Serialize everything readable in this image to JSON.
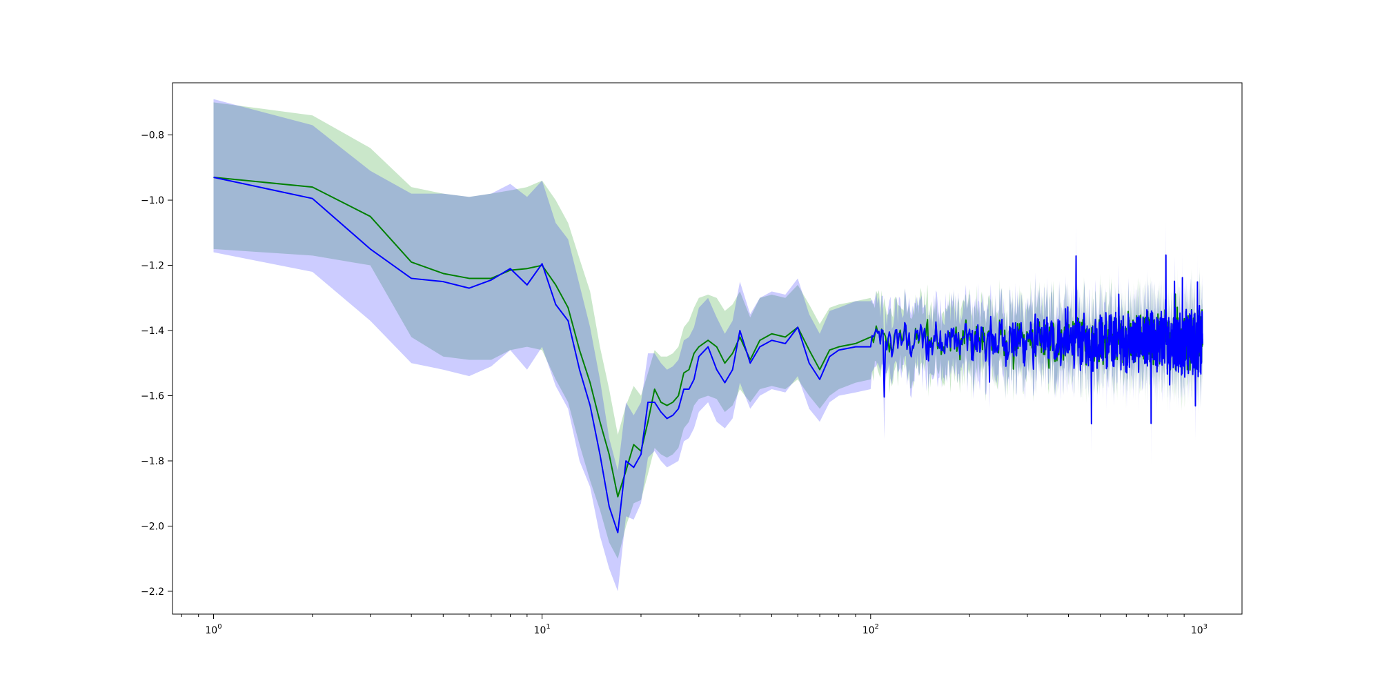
{
  "chart_data": {
    "type": "line",
    "title": "",
    "xlabel": "",
    "ylabel": "",
    "xscale": "log",
    "xlim": [
      0.75,
      1350
    ],
    "ylim": [
      -2.27,
      -0.64
    ],
    "grid": false,
    "legend": "none",
    "x_ticks": [
      {
        "base": "10",
        "exp": "0",
        "value": 1
      },
      {
        "base": "10",
        "exp": "1",
        "value": 10
      },
      {
        "base": "10",
        "exp": "2",
        "value": 100
      },
      {
        "base": "10",
        "exp": "3",
        "value": 1000
      }
    ],
    "y_ticks": [
      {
        "label": "−0.8",
        "value": -0.8
      },
      {
        "label": "−1.0",
        "value": -1.0
      },
      {
        "label": "−1.2",
        "value": -1.2
      },
      {
        "label": "−1.4",
        "value": -1.4
      },
      {
        "label": "−1.6",
        "value": -1.6
      },
      {
        "label": "−1.8",
        "value": -1.8
      },
      {
        "label": "−2.0",
        "value": -2.0
      },
      {
        "label": "−2.2",
        "value": -2.2
      }
    ],
    "series": [
      {
        "color": "#008000",
        "band_color": "#2ca02c",
        "band_opacity": 0.25,
        "x": [
          1,
          2,
          3,
          4,
          5,
          6,
          7,
          8,
          9,
          10,
          11,
          12,
          13,
          14,
          15,
          16,
          17,
          18,
          19,
          20,
          21,
          22,
          23,
          24,
          25,
          26,
          27,
          28,
          29,
          30,
          32,
          34,
          36,
          38,
          40,
          43,
          46,
          50,
          55,
          60,
          65,
          70,
          75,
          80,
          90,
          100
        ],
        "y": [
          -0.93,
          -0.96,
          -1.05,
          -1.19,
          -1.225,
          -1.24,
          -1.24,
          -1.215,
          -1.21,
          -1.2,
          -1.26,
          -1.33,
          -1.46,
          -1.56,
          -1.68,
          -1.78,
          -1.91,
          -1.83,
          -1.75,
          -1.77,
          -1.68,
          -1.58,
          -1.62,
          -1.63,
          -1.62,
          -1.6,
          -1.53,
          -1.52,
          -1.47,
          -1.45,
          -1.43,
          -1.45,
          -1.5,
          -1.47,
          -1.42,
          -1.49,
          -1.43,
          -1.41,
          -1.42,
          -1.39,
          -1.46,
          -1.52,
          -1.46,
          -1.45,
          -1.44,
          -1.42
        ],
        "lower": [
          -1.15,
          -1.17,
          -1.2,
          -1.42,
          -1.48,
          -1.49,
          -1.49,
          -1.46,
          -1.45,
          -1.46,
          -1.55,
          -1.62,
          -1.75,
          -1.86,
          -1.95,
          -2.05,
          -2.1,
          -2.0,
          -1.93,
          -1.92,
          -1.84,
          -1.76,
          -1.78,
          -1.79,
          -1.78,
          -1.76,
          -1.7,
          -1.68,
          -1.63,
          -1.61,
          -1.6,
          -1.61,
          -1.65,
          -1.63,
          -1.58,
          -1.62,
          -1.58,
          -1.57,
          -1.58,
          -1.55,
          -1.6,
          -1.64,
          -1.6,
          -1.58,
          -1.56,
          -1.55
        ],
        "upper": [
          -0.7,
          -0.74,
          -0.84,
          -0.96,
          -0.98,
          -0.99,
          -0.98,
          -0.97,
          -0.96,
          -0.94,
          -1.0,
          -1.07,
          -1.18,
          -1.28,
          -1.45,
          -1.58,
          -1.72,
          -1.63,
          -1.57,
          -1.6,
          -1.53,
          -1.46,
          -1.48,
          -1.48,
          -1.47,
          -1.45,
          -1.39,
          -1.37,
          -1.33,
          -1.3,
          -1.29,
          -1.3,
          -1.34,
          -1.32,
          -1.28,
          -1.36,
          -1.3,
          -1.29,
          -1.3,
          -1.26,
          -1.32,
          -1.38,
          -1.33,
          -1.32,
          -1.31,
          -1.3
        ]
      },
      {
        "color": "#0000ff",
        "band_color": "#0000ff",
        "band_opacity": 0.2,
        "x": [
          1,
          2,
          3,
          4,
          5,
          6,
          7,
          8,
          9,
          10,
          11,
          12,
          13,
          14,
          15,
          16,
          17,
          18,
          19,
          20,
          21,
          22,
          23,
          24,
          25,
          26,
          27,
          28,
          29,
          30,
          32,
          34,
          36,
          38,
          40,
          43,
          46,
          50,
          55,
          60,
          65,
          70,
          75,
          80,
          90,
          100
        ],
        "y": [
          -0.93,
          -0.995,
          -1.15,
          -1.24,
          -1.25,
          -1.27,
          -1.245,
          -1.21,
          -1.26,
          -1.195,
          -1.32,
          -1.37,
          -1.52,
          -1.63,
          -1.78,
          -1.94,
          -2.02,
          -1.8,
          -1.82,
          -1.78,
          -1.62,
          -1.62,
          -1.65,
          -1.67,
          -1.66,
          -1.64,
          -1.58,
          -1.58,
          -1.55,
          -1.48,
          -1.45,
          -1.52,
          -1.56,
          -1.52,
          -1.4,
          -1.5,
          -1.45,
          -1.43,
          -1.44,
          -1.39,
          -1.5,
          -1.55,
          -1.48,
          -1.46,
          -1.45,
          -1.45
        ],
        "lower": [
          -1.16,
          -1.22,
          -1.37,
          -1.5,
          -1.52,
          -1.54,
          -1.51,
          -1.46,
          -1.52,
          -1.45,
          -1.57,
          -1.64,
          -1.8,
          -1.88,
          -2.03,
          -2.13,
          -2.2,
          -1.97,
          -1.98,
          -1.93,
          -1.79,
          -1.77,
          -1.8,
          -1.82,
          -1.81,
          -1.8,
          -1.74,
          -1.73,
          -1.7,
          -1.65,
          -1.62,
          -1.68,
          -1.7,
          -1.67,
          -1.56,
          -1.64,
          -1.6,
          -1.58,
          -1.59,
          -1.54,
          -1.64,
          -1.68,
          -1.62,
          -1.6,
          -1.59,
          -1.58
        ],
        "upper": [
          -0.69,
          -0.77,
          -0.91,
          -0.98,
          -0.98,
          -0.99,
          -0.98,
          -0.95,
          -0.99,
          -0.94,
          -1.07,
          -1.12,
          -1.26,
          -1.39,
          -1.55,
          -1.73,
          -1.83,
          -1.62,
          -1.66,
          -1.62,
          -1.47,
          -1.47,
          -1.5,
          -1.52,
          -1.51,
          -1.49,
          -1.43,
          -1.42,
          -1.39,
          -1.33,
          -1.3,
          -1.36,
          -1.41,
          -1.37,
          -1.25,
          -1.35,
          -1.3,
          -1.28,
          -1.29,
          -1.24,
          -1.35,
          -1.41,
          -1.34,
          -1.33,
          -1.31,
          -1.31
        ]
      }
    ],
    "tail": {
      "x_start": 100,
      "x_end": 1024,
      "center": -1.43,
      "note_noise_amplitude": 0.06
    }
  }
}
